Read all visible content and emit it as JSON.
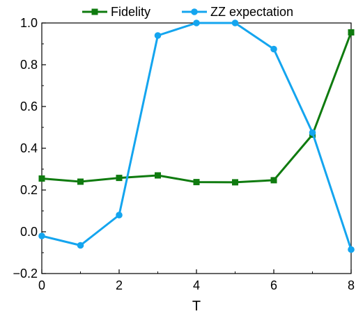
{
  "chart_data": {
    "type": "line",
    "x": [
      0,
      1,
      2,
      3,
      4,
      5,
      6,
      7,
      8
    ],
    "series": [
      {
        "name": "Fidelity",
        "color": "#0f7b0f",
        "marker": "square",
        "values": [
          0.255,
          0.24,
          0.258,
          0.27,
          0.238,
          0.237,
          0.247,
          0.465,
          0.955
        ]
      },
      {
        "name": "ZZ expectation",
        "color": "#14a5ef",
        "marker": "circle",
        "values": [
          -0.02,
          -0.065,
          0.08,
          0.94,
          1.0,
          1.0,
          0.875,
          0.475,
          -0.085
        ]
      }
    ],
    "xlabel": "T",
    "ylabel": "",
    "xlim": [
      0,
      8
    ],
    "ylim": [
      -0.2,
      1.0
    ],
    "xticks": [
      "0",
      "2",
      "4",
      "6",
      "8"
    ],
    "yticks": [
      "−0.2",
      "0.0",
      "0.2",
      "0.4",
      "0.6",
      "0.8",
      "1.0"
    ],
    "grid": false,
    "legend": "top"
  }
}
